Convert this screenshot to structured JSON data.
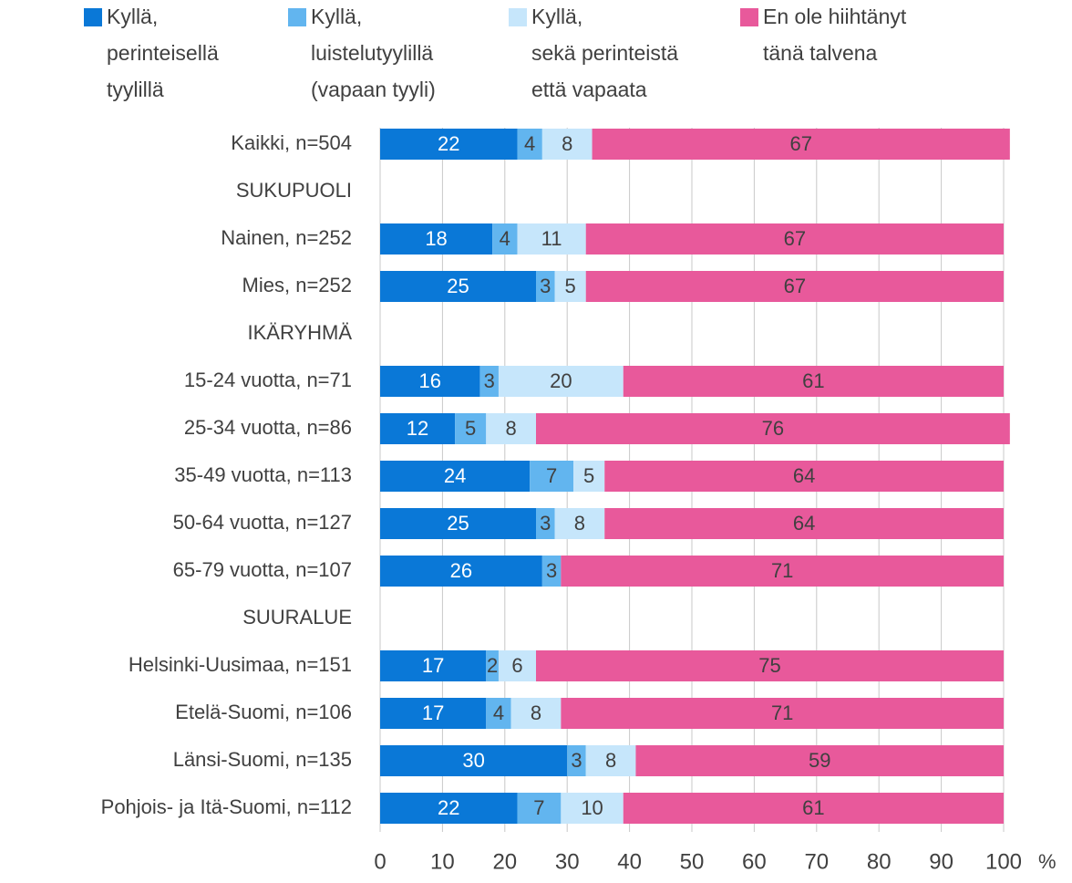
{
  "chart_data": {
    "type": "stacked_barh",
    "categories": [
      "Kaikki, n=504",
      "SUKUPUOLI",
      "Nainen, n=252",
      "Mies, n=252",
      "IKÄRYHMÄ",
      "15-24 vuotta, n=71",
      "25-34 vuotta, n=86",
      "35-49 vuotta, n=113",
      "50-64 vuotta, n=127",
      "65-79 vuotta, n=107",
      "SUURALUE",
      "Helsinki-Uusimaa, n=151",
      "Etelä-Suomi, n=106",
      "Länsi-Suomi, n=135",
      "Pohjois- ja Itä-Suomi, n=112"
    ],
    "series": [
      {
        "name": "Kyllä,\nperinteisellä\ntyylillä",
        "color": "#0a78d7",
        "label_color": "#ffffff",
        "values": [
          22,
          null,
          18,
          25,
          null,
          16,
          12,
          24,
          25,
          26,
          null,
          17,
          17,
          30,
          22
        ]
      },
      {
        "name": "Kyllä,\nluistelutyylillä\n(vapaan tyyli)",
        "color": "#62b5ef",
        "label_color": "#404040",
        "values": [
          4,
          null,
          4,
          3,
          null,
          3,
          5,
          7,
          3,
          3,
          null,
          2,
          4,
          3,
          7
        ]
      },
      {
        "name": "Kyllä,\nsekä perinteistä\nettä vapaata",
        "color": "#c6e6fb",
        "label_color": "#404040",
        "values": [
          8,
          null,
          11,
          5,
          null,
          20,
          8,
          5,
          8,
          null,
          null,
          6,
          8,
          8,
          10
        ]
      },
      {
        "name": "En ole hiihtänyt\ntänä talvena",
        "color": "#e8599b",
        "label_color": "#404040",
        "values": [
          67,
          null,
          67,
          67,
          null,
          61,
          76,
          64,
          64,
          71,
          null,
          75,
          71,
          59,
          61
        ]
      }
    ],
    "xlim": [
      0,
      100
    ],
    "xticks": [
      0,
      10,
      20,
      30,
      40,
      50,
      60,
      70,
      80,
      90,
      100
    ],
    "xlabel": "%",
    "grid": true
  }
}
